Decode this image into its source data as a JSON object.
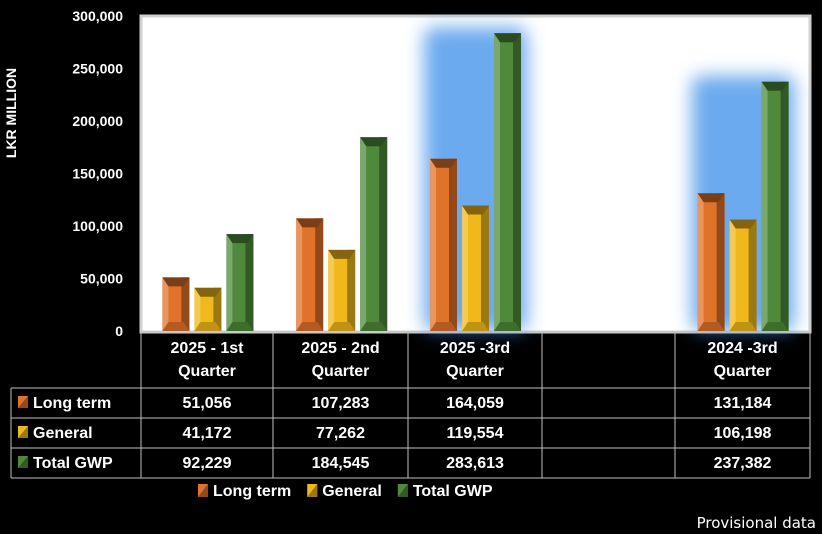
{
  "chart_data": {
    "type": "bar",
    "ylabel": "LKR MILLION",
    "ylim": [
      0,
      300000
    ],
    "yticks": [
      "300,000",
      "250,000",
      "200,000",
      "150,000",
      "100,000",
      "50,000",
      "0"
    ],
    "categories": [
      [
        "2025 - 1st",
        "Quarter"
      ],
      [
        "2025 - 2nd",
        "Quarter"
      ],
      [
        "2025 -3rd",
        "Quarter"
      ],
      [
        "",
        ""
      ],
      [
        "2024 -3rd",
        "Quarter"
      ]
    ],
    "series": [
      {
        "name": "Long term",
        "color": "#e0722a",
        "values": [
          51056,
          107283,
          164059,
          null,
          131184
        ],
        "labels": [
          "51,056",
          "107,283",
          "164,059",
          "",
          "131,184"
        ]
      },
      {
        "name": "General",
        "color": "#f0b81a",
        "values": [
          41172,
          77262,
          119554,
          null,
          106198
        ],
        "labels": [
          "41,172",
          "77,262",
          "119,554",
          "",
          "106,198"
        ]
      },
      {
        "name": "Total GWP",
        "color": "#4e8a3a",
        "values": [
          92229,
          184545,
          283613,
          null,
          237382
        ],
        "labels": [
          "92,229",
          "184,545",
          "283,613",
          "",
          "237,382"
        ]
      }
    ],
    "grid": false,
    "legend": "bottom",
    "data_table": true
  },
  "footer": {
    "note": "Provisional data"
  }
}
